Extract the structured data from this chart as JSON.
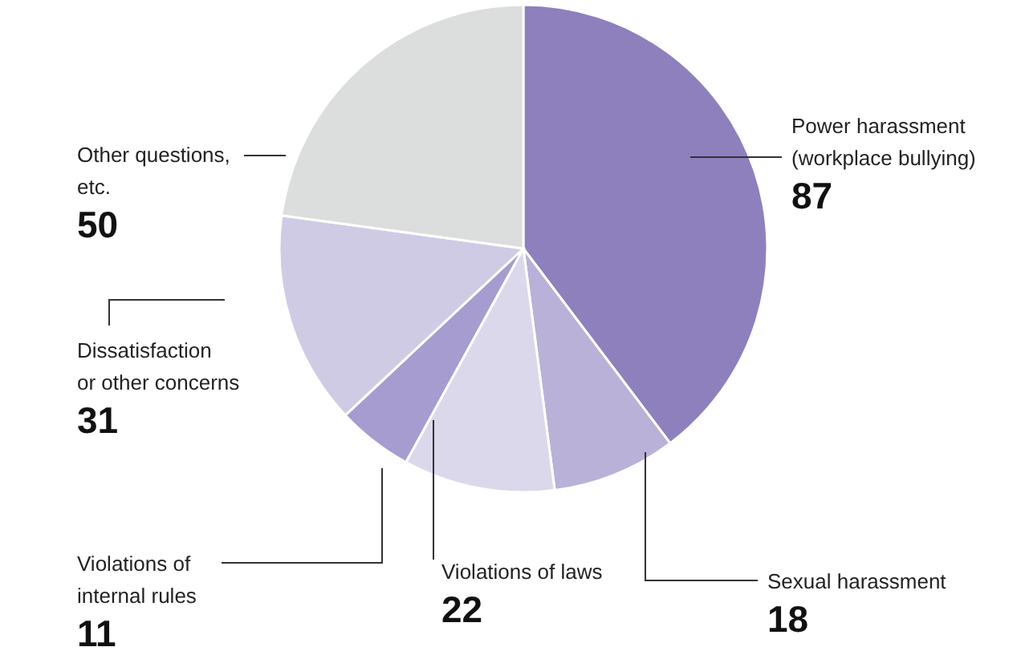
{
  "chart_data": {
    "type": "pie",
    "categories": [
      "Power harassment\n(workplace bullying)",
      "Sexual harassment",
      "Violations of laws",
      "Violations of\ninternal rules",
      "Dissatisfaction\nor other concerns",
      "Other questions,\netc."
    ],
    "values": [
      87,
      18,
      22,
      11,
      31,
      50
    ],
    "colors": [
      "#8e80bd",
      "#b9b1d8",
      "#dcd8ec",
      "#a69ccf",
      "#cfcbe5",
      "#dcdddd"
    ],
    "data_labels": true
  }
}
